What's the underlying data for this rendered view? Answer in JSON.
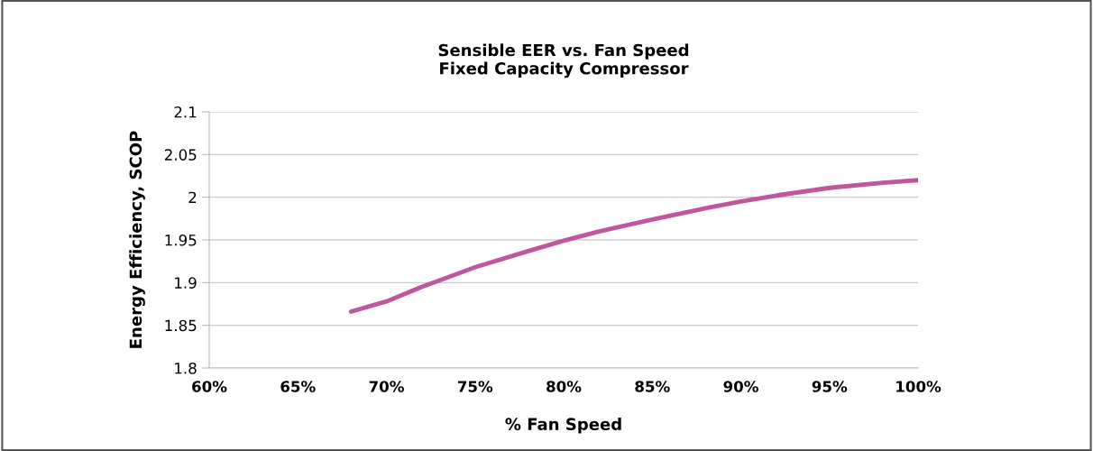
{
  "chart_data": {
    "type": "line",
    "title": "Sensible EER vs. Fan Speed\nFixed Capacity Compressor",
    "xlabel": "% Fan Speed",
    "ylabel": "Energy Efficiency, SCOP",
    "series": [
      {
        "color": "#c0569e",
        "x": [
          68,
          70,
          72,
          75,
          78,
          80,
          82,
          85,
          88,
          90,
          92,
          95,
          98,
          100
        ],
        "values": [
          1.866,
          1.878,
          1.895,
          1.918,
          1.937,
          1.949,
          1.96,
          1.974,
          1.987,
          1.995,
          2.002,
          2.011,
          2.017,
          2.02
        ]
      }
    ],
    "xlim": [
      60,
      100
    ],
    "xticks": [
      {
        "value": 60,
        "label": "60%"
      },
      {
        "value": 65,
        "label": "65%"
      },
      {
        "value": 70,
        "label": "70%"
      },
      {
        "value": 75,
        "label": "75%"
      },
      {
        "value": 80,
        "label": "80%"
      },
      {
        "value": 85,
        "label": "85%"
      },
      {
        "value": 90,
        "label": "90%"
      },
      {
        "value": 95,
        "label": "95%"
      },
      {
        "value": 100,
        "label": "100%"
      }
    ],
    "ylim": [
      1.8,
      2.1
    ],
    "yticks": [
      1.8,
      1.85,
      1.9,
      1.95,
      2,
      2.05,
      2.1
    ],
    "grid": "y",
    "marker": "none",
    "line_style": "solid"
  }
}
